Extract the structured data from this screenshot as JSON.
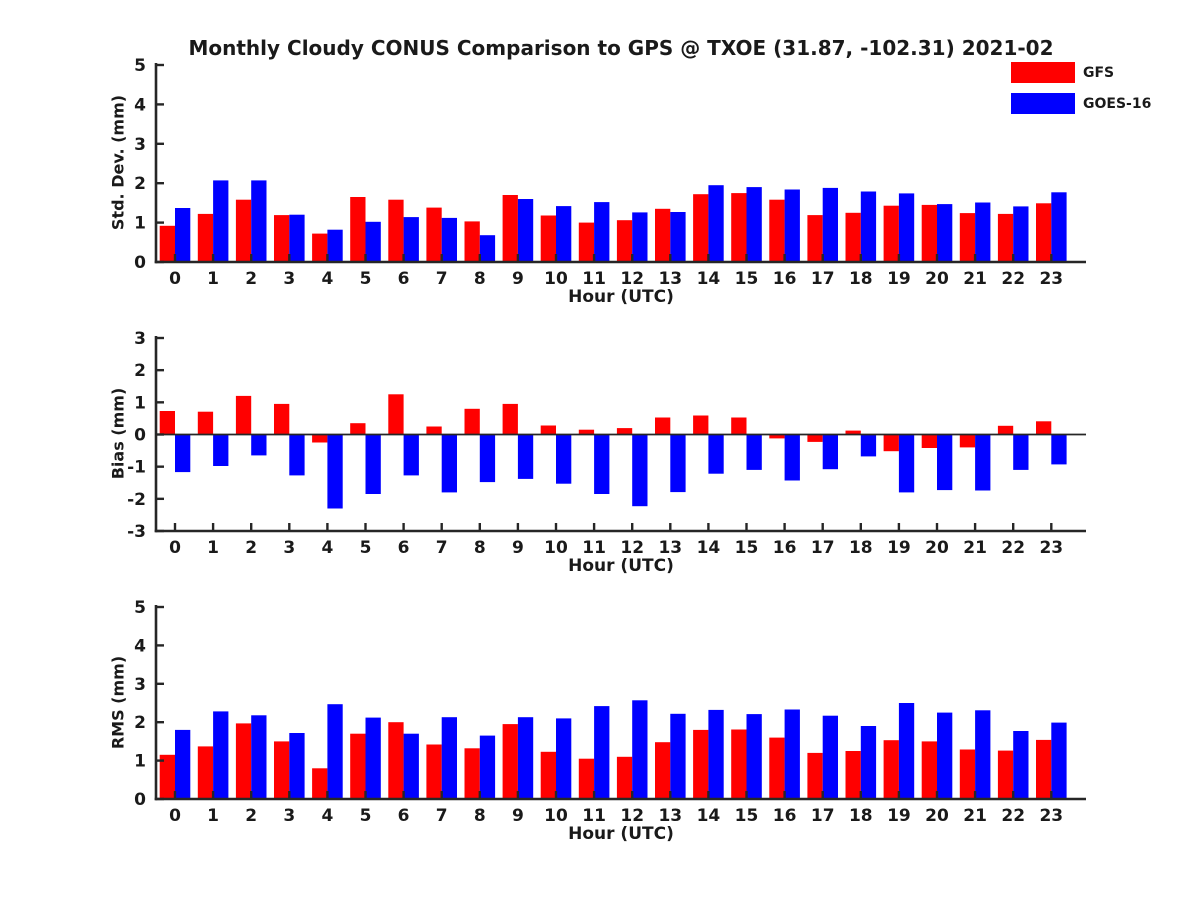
{
  "header": {
    "title": "Monthly Cloudy CONUS Comparison to GPS @ TXOE (31.87, -102.31) 2021-02"
  },
  "legend": {
    "position": "top-right",
    "items": [
      {
        "label": "GFS",
        "color": "#ff0000"
      },
      {
        "label": "GOES-16",
        "color": "#0000ff"
      }
    ]
  },
  "chart_data": [
    {
      "type": "bar",
      "name": "std-dev",
      "ylabel": "Std. Dev. (mm)",
      "xlabel": "Hour (UTC)",
      "ylim": [
        0,
        5
      ],
      "yticks": [
        0,
        1,
        2,
        3,
        4,
        5
      ],
      "grid": false,
      "categories": [
        0,
        1,
        2,
        3,
        4,
        5,
        6,
        7,
        8,
        9,
        10,
        11,
        12,
        13,
        14,
        15,
        16,
        17,
        18,
        19,
        20,
        21,
        22,
        23
      ],
      "series": [
        {
          "name": "GFS",
          "color": "#ff0000",
          "values": [
            0.92,
            1.22,
            1.58,
            1.19,
            0.72,
            1.65,
            1.58,
            1.38,
            1.03,
            1.7,
            1.18,
            1.0,
            1.06,
            1.35,
            1.72,
            1.75,
            1.58,
            1.19,
            1.25,
            1.43,
            1.45,
            1.24,
            1.22,
            1.49
          ]
        },
        {
          "name": "GOES-16",
          "color": "#0000ff",
          "values": [
            1.37,
            2.07,
            2.07,
            1.2,
            0.82,
            1.02,
            1.14,
            1.12,
            0.68,
            1.6,
            1.42,
            1.52,
            1.26,
            1.27,
            1.95,
            1.9,
            1.84,
            1.88,
            1.79,
            1.74,
            1.47,
            1.51,
            1.41,
            1.77
          ]
        }
      ]
    },
    {
      "type": "bar",
      "name": "bias",
      "ylabel": "Bias (mm)",
      "xlabel": "Hour (UTC)",
      "ylim": [
        -3,
        3
      ],
      "yticks": [
        -3,
        -2,
        -1,
        0,
        1,
        2,
        3
      ],
      "zero_line": true,
      "grid": false,
      "categories": [
        0,
        1,
        2,
        3,
        4,
        5,
        6,
        7,
        8,
        9,
        10,
        11,
        12,
        13,
        14,
        15,
        16,
        17,
        18,
        19,
        20,
        21,
        22,
        23
      ],
      "series": [
        {
          "name": "GFS",
          "color": "#ff0000",
          "values": [
            0.73,
            0.71,
            1.2,
            0.95,
            -0.25,
            0.35,
            1.25,
            0.25,
            0.8,
            0.95,
            0.28,
            0.15,
            0.2,
            0.53,
            0.59,
            0.53,
            -0.12,
            -0.23,
            0.12,
            -0.52,
            -0.42,
            -0.4,
            0.27,
            0.41
          ]
        },
        {
          "name": "GOES-16",
          "color": "#0000ff",
          "values": [
            -1.17,
            -0.98,
            -0.65,
            -1.27,
            -2.3,
            -1.85,
            -1.27,
            -1.8,
            -1.48,
            -1.38,
            -1.53,
            -1.85,
            -2.23,
            -1.79,
            -1.22,
            -1.1,
            -1.43,
            -1.08,
            -0.68,
            -1.8,
            -1.73,
            -1.74,
            -1.1,
            -0.93
          ]
        }
      ]
    },
    {
      "type": "bar",
      "name": "rms",
      "ylabel": "RMS (mm)",
      "xlabel": "Hour (UTC)",
      "ylim": [
        0,
        5
      ],
      "yticks": [
        0,
        1,
        2,
        3,
        4,
        5
      ],
      "grid": false,
      "categories": [
        0,
        1,
        2,
        3,
        4,
        5,
        6,
        7,
        8,
        9,
        10,
        11,
        12,
        13,
        14,
        15,
        16,
        17,
        18,
        19,
        20,
        21,
        22,
        23
      ],
      "series": [
        {
          "name": "GFS",
          "color": "#ff0000",
          "values": [
            1.15,
            1.37,
            1.97,
            1.5,
            0.8,
            1.7,
            2.0,
            1.42,
            1.32,
            1.95,
            1.23,
            1.05,
            1.1,
            1.48,
            1.8,
            1.81,
            1.6,
            1.2,
            1.25,
            1.53,
            1.5,
            1.29,
            1.26,
            1.54
          ]
        },
        {
          "name": "GOES-16",
          "color": "#0000ff",
          "values": [
            1.8,
            2.28,
            2.18,
            1.72,
            2.47,
            2.12,
            1.7,
            2.13,
            1.65,
            2.13,
            2.1,
            2.42,
            2.57,
            2.22,
            2.32,
            2.21,
            2.33,
            2.17,
            1.9,
            2.5,
            2.25,
            2.31,
            1.77,
            1.99
          ]
        }
      ]
    }
  ]
}
